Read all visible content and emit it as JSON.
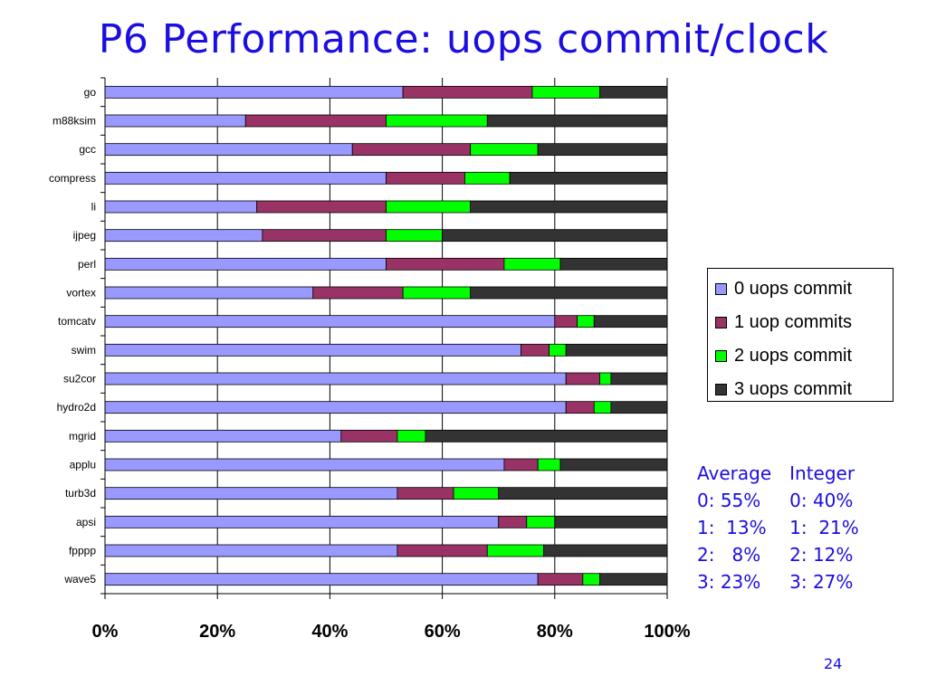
{
  "slide": {
    "title": "P6 Performance: uops commit/clock",
    "page_number": "24"
  },
  "colors": {
    "series": [
      "#9999ff",
      "#993366",
      "#00ff00",
      "#333333"
    ],
    "title": "#1c0ee0"
  },
  "chart_data": {
    "type": "bar",
    "orientation": "horizontal",
    "stacked": "percent",
    "categories": [
      "go",
      "m88ksim",
      "gcc",
      "compress",
      "li",
      "ijpeg",
      "perl",
      "vortex",
      "tomcatv",
      "swim",
      "su2cor",
      "hydro2d",
      "mgrid",
      "applu",
      "turb3d",
      "apsi",
      "fpppp",
      "wave5"
    ],
    "series": [
      {
        "name": "0 uops commit",
        "values": [
          53,
          25,
          44,
          50,
          27,
          28,
          50,
          37,
          80,
          74,
          82,
          82,
          42,
          71,
          52,
          70,
          52,
          77
        ]
      },
      {
        "name": "1 uop commits",
        "values": [
          23,
          25,
          21,
          14,
          23,
          22,
          21,
          16,
          4,
          5,
          6,
          5,
          10,
          6,
          10,
          5,
          16,
          8
        ]
      },
      {
        "name": "2 uops commit",
        "values": [
          12,
          18,
          12,
          8,
          15,
          10,
          10,
          12,
          3,
          3,
          2,
          3,
          5,
          4,
          8,
          5,
          10,
          3
        ]
      },
      {
        "name": "3 uops commit",
        "values": [
          12,
          32,
          23,
          28,
          35,
          40,
          19,
          35,
          13,
          18,
          10,
          10,
          43,
          19,
          30,
          20,
          22,
          12
        ]
      }
    ],
    "xticks": [
      "0%",
      "20%",
      "40%",
      "60%",
      "80%",
      "100%"
    ],
    "xlim": [
      0,
      100
    ],
    "grid": "vertical",
    "legend_position": "right",
    "title": "",
    "xlabel": "",
    "ylabel": ""
  },
  "stats": {
    "average": {
      "header": "Average",
      "rows": [
        "0: 55%",
        "1:  13%",
        "2:   8%",
        "3: 23%"
      ]
    },
    "integer": {
      "header": "Integer",
      "rows": [
        "0: 40%",
        "1:  21%",
        "2: 12%",
        "3: 27%"
      ]
    }
  }
}
